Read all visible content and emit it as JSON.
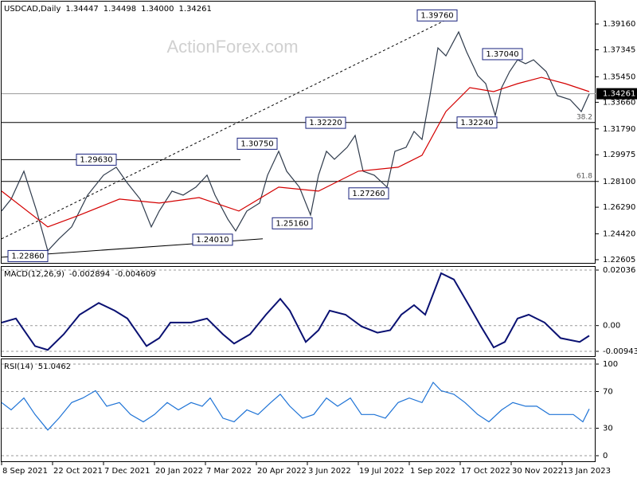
{
  "chart_data": [
    {
      "type": "line",
      "title": "USDCAD,Daily",
      "header_values": [
        "1.34447",
        "1.34498",
        "1.34000",
        "1.34261"
      ],
      "watermark": "ActionForex.com",
      "xlim": [
        0,
        373
      ],
      "ylim": [
        1.2238,
        1.4073
      ],
      "grid": false,
      "yticks": [
        {
          "value": 1.3916,
          "label": "1.39160"
        },
        {
          "value": 1.37345,
          "label": "1.37345"
        },
        {
          "value": 1.3545,
          "label": "1.35450"
        },
        {
          "value": 1.3366,
          "label": "1.33660"
        },
        {
          "value": 1.3179,
          "label": "1.31790"
        },
        {
          "value": 1.29975,
          "label": "1.29975"
        },
        {
          "value": 1.281,
          "label": "1.28100"
        },
        {
          "value": 1.2629,
          "label": "1.26290"
        },
        {
          "value": 1.2442,
          "label": "1.24420"
        },
        {
          "value": 1.22605,
          "label": "1.22605"
        }
      ],
      "series": [
        {
          "color": "#2f3b4c",
          "x": [
            0,
            6,
            14,
            22,
            29,
            36,
            44,
            54,
            64,
            72,
            79,
            87,
            94,
            99,
            107,
            114,
            122,
            129,
            134,
            142,
            147,
            154,
            162,
            167,
            174,
            179,
            187,
            194,
            199,
            204,
            209,
            217,
            222,
            227,
            234,
            242,
            247,
            254,
            259,
            264,
            269,
            274,
            279,
            287,
            292,
            299,
            304,
            310,
            314,
            319,
            324,
            329,
            334,
            342,
            349,
            357,
            364,
            369
          ],
          "values": [
            1.2602,
            1.2686,
            1.2882,
            1.2602,
            1.2323,
            1.2407,
            1.2491,
            1.2714,
            1.2854,
            1.291,
            1.2798,
            1.2686,
            1.2491,
            1.2602,
            1.2742,
            1.2714,
            1.277,
            1.2854,
            1.2714,
            1.2546,
            1.2463,
            1.2602,
            1.2658,
            1.2854,
            1.3022,
            1.2882,
            1.277,
            1.2574,
            1.2854,
            1.3022,
            1.2966,
            1.305,
            1.3133,
            1.2882,
            1.2854,
            1.277,
            1.3022,
            1.305,
            1.3161,
            1.3105,
            1.3413,
            1.3748,
            1.3692,
            1.386,
            1.372,
            1.3553,
            1.3497,
            1.3273,
            1.3469,
            1.3581,
            1.3664,
            1.3637,
            1.3664,
            1.3581,
            1.3413,
            1.3385,
            1.3301,
            1.3424
          ]
        },
        {
          "color": "#d40000",
          "x": [
            0,
            29,
            49,
            74,
            99,
            124,
            149,
            174,
            199,
            224,
            249,
            264,
            279,
            294,
            309,
            324,
            339,
            354,
            369
          ],
          "values": [
            1.2742,
            1.2491,
            1.2574,
            1.2686,
            1.2658,
            1.2697,
            1.2602,
            1.277,
            1.2742,
            1.2882,
            1.291,
            1.2994,
            1.3301,
            1.3469,
            1.3441,
            1.3497,
            1.3541,
            1.3497,
            1.3441
          ]
        }
      ],
      "annotations": [
        {
          "x": 286,
          "value": 1.3976,
          "label": "1.39760"
        },
        {
          "x": 327,
          "value": 1.3704,
          "label": "1.37040"
        },
        {
          "x": 311,
          "value": 1.3224,
          "label": "1.32240"
        },
        {
          "x": 216,
          "value": 1.3222,
          "label": "1.32220"
        },
        {
          "x": 173,
          "value": 1.3075,
          "label": "1.30750"
        },
        {
          "x": 72,
          "value": 1.2963,
          "label": "1.29630"
        },
        {
          "x": 243,
          "value": 1.2726,
          "label": "1.27260"
        },
        {
          "x": 195,
          "value": 1.2516,
          "label": "1.25160"
        },
        {
          "x": 145,
          "value": 1.2401,
          "label": "1.24010"
        },
        {
          "x": 29,
          "value": 1.2286,
          "label": "1.22860"
        }
      ],
      "levels": [
        {
          "value": 1.3224,
          "label": "38.2"
        },
        {
          "value": 1.281,
          "label": "61.8"
        }
      ],
      "last": {
        "value": 1.34261,
        "label": "1.34261"
      },
      "trendlines": [
        {
          "x": [
            0,
            150
          ],
          "values": [
            1.2963,
            1.2963
          ],
          "dash": false
        },
        {
          "x": [
            0,
            164
          ],
          "values": [
            1.2278,
            1.2407
          ],
          "dash": false
        },
        {
          "x": [
            0,
            286
          ],
          "values": [
            1.2407,
            1.3983
          ],
          "dash": true
        }
      ]
    },
    {
      "type": "line",
      "title": "MACD(12,26,9)",
      "header_values": [
        "-0.002894",
        "-0.004609"
      ],
      "xlim": [
        0,
        373
      ],
      "ylim": [
        -0.009438,
        0.02036
      ],
      "grid": true,
      "yticks": [
        0.02036,
        {
          "value": 0,
          "label": "0.00"
        },
        -0.009438
      ],
      "series": [
        {
          "color": "#0a1172",
          "x": [
            0,
            9,
            21,
            29,
            39,
            49,
            61,
            71,
            79,
            91,
            99,
            106,
            119,
            129,
            139,
            146,
            156,
            166,
            175,
            181,
            191,
            199,
            206,
            216,
            226,
            236,
            244,
            251,
            259,
            266,
            276,
            284,
            294,
            301,
            309,
            316,
            324,
            331,
            341,
            351,
            363,
            369
          ],
          "values": [
            0.0011,
            0.0026,
            -0.0075,
            -0.0089,
            -0.0032,
            0.004,
            0.0083,
            0.0055,
            0.0026,
            -0.0075,
            -0.0046,
            0.0011,
            0.0011,
            0.0026,
            -0.0032,
            -0.0066,
            -0.0032,
            0.004,
            0.0098,
            0.0055,
            -0.006,
            -0.0017,
            0.0055,
            0.004,
            -0.0003,
            -0.0026,
            -0.0017,
            0.004,
            0.0075,
            0.004,
            0.0192,
            0.0169,
            0.0069,
            -0.0003,
            -0.008,
            -0.006,
            0.0026,
            0.004,
            0.0011,
            -0.0046,
            -0.006,
            -0.0037
          ]
        }
      ]
    },
    {
      "type": "line",
      "title": "RSI(14)",
      "header_values": [
        "51.0462"
      ],
      "xlim": [
        0,
        373
      ],
      "ylim": [
        0,
        100
      ],
      "grid": true,
      "yticks": [
        100,
        70,
        30,
        0
      ],
      "xticks": [
        {
          "value": 0,
          "label": "8 Sep 2021"
        },
        {
          "value": 32,
          "label": "22 Oct 2021"
        },
        {
          "value": 64,
          "label": "7 Dec 2021"
        },
        {
          "value": 96,
          "label": "20 Jan 2022"
        },
        {
          "value": 128,
          "label": "7 Mar 2022"
        },
        {
          "value": 160,
          "label": "20 Apr 2022"
        },
        {
          "value": 192,
          "label": "3 Jun 2022"
        },
        {
          "value": 224,
          "label": "19 Jul 2022"
        },
        {
          "value": 256,
          "label": "1 Sep 2022"
        },
        {
          "value": 288,
          "label": "17 Oct 2022"
        },
        {
          "value": 320,
          "label": "30 Nov 2022"
        },
        {
          "value": 352,
          "label": "13 Jan 2023"
        }
      ],
      "series": [
        {
          "color": "#1e73d6",
          "x": [
            0,
            6,
            14,
            21,
            29,
            36,
            44,
            51,
            59,
            66,
            74,
            81,
            89,
            96,
            104,
            111,
            119,
            126,
            131,
            139,
            146,
            154,
            161,
            169,
            175,
            181,
            189,
            196,
            204,
            211,
            219,
            226,
            234,
            241,
            249,
            256,
            264,
            271,
            276,
            284,
            291,
            299,
            306,
            314,
            321,
            329,
            336,
            344,
            351,
            359,
            365,
            369
          ],
          "values": [
            58,
            50,
            63,
            45,
            28,
            41,
            58,
            63,
            71,
            54,
            58,
            45,
            37,
            45,
            58,
            50,
            58,
            54,
            63,
            41,
            37,
            50,
            45,
            58,
            67,
            54,
            41,
            45,
            63,
            54,
            63,
            45,
            45,
            41,
            58,
            63,
            58,
            80,
            71,
            67,
            58,
            45,
            37,
            50,
            58,
            54,
            54,
            45,
            45,
            45,
            37,
            51.0462
          ]
        }
      ]
    }
  ]
}
